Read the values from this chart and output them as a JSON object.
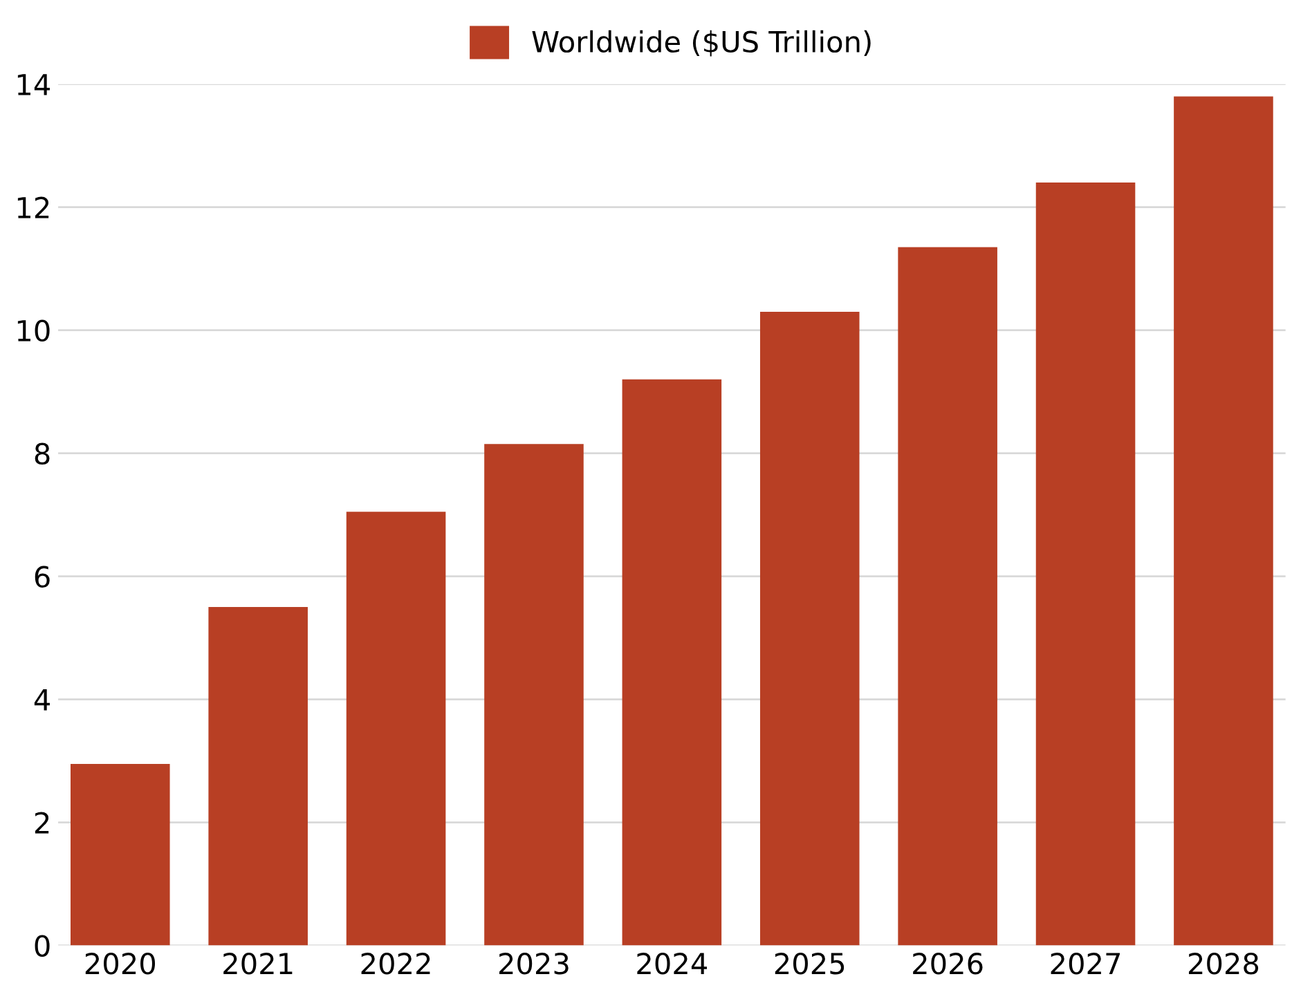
{
  "chart_data": {
    "type": "bar",
    "categories": [
      "2020",
      "2021",
      "2022",
      "2023",
      "2024",
      "2025",
      "2026",
      "2027",
      "2028"
    ],
    "series": [
      {
        "name": "Worldwide ($US Trillion)",
        "color": "#b83f24",
        "values": [
          2.95,
          5.5,
          7.05,
          8.15,
          9.2,
          10.3,
          11.35,
          12.4,
          13.8
        ]
      }
    ],
    "ylim": [
      0,
      14
    ],
    "yticks": [
      0,
      2,
      4,
      6,
      8,
      10,
      12,
      14
    ],
    "grid": "y",
    "legend": "top"
  }
}
